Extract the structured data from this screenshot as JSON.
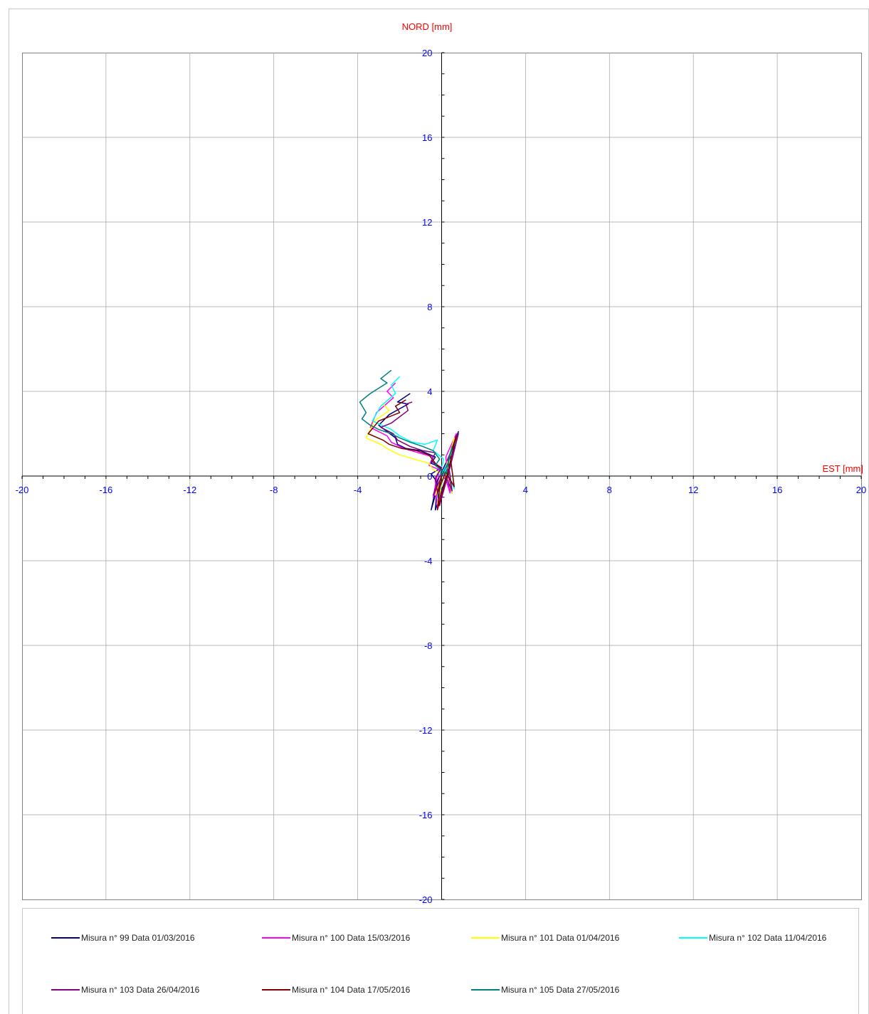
{
  "chart_data": {
    "type": "line",
    "ylabel": "NORD  [mm]",
    "xlabel": "EST [mm]",
    "xlim": [
      -20,
      20
    ],
    "ylim": [
      -20,
      20
    ],
    "x_ticks": [
      "-20",
      "-16",
      "-12",
      "-8",
      "-4",
      "0",
      "4",
      "8",
      "12",
      "16",
      "20"
    ],
    "y_ticks": [
      "20",
      "16",
      "12",
      "8",
      "4",
      "0",
      "-4",
      "-8",
      "-12",
      "-16",
      "-20"
    ],
    "x_tick_values": [
      -20,
      -16,
      -12,
      -8,
      -4,
      0,
      4,
      8,
      12,
      16,
      20
    ],
    "y_tick_values": [
      20,
      16,
      12,
      8,
      4,
      0,
      -4,
      -8,
      -12,
      -16,
      -20
    ],
    "grid": true,
    "legend_position": "bottom",
    "series": [
      {
        "name": "Misura n° 99 Data 01/03/2016",
        "color": "#000080",
        "x": [
          -1.5,
          -2.1,
          -1.6,
          -2.5,
          -3.0,
          -2.2,
          -2.1,
          -1.7,
          -1.0,
          -0.3,
          -0.5,
          0.0,
          -0.5,
          -0.2,
          -0.3,
          0.3,
          0.5,
          0.8,
          0.3,
          0.0,
          0.5,
          0.3,
          -0.3,
          -0.5,
          -0.2,
          0.0,
          -0.1
        ],
        "y": [
          3.9,
          3.5,
          3.4,
          2.9,
          2.4,
          1.8,
          1.5,
          1.3,
          1.2,
          0.9,
          0.6,
          0.4,
          0.1,
          -0.3,
          -1.6,
          0.2,
          1.0,
          2.1,
          0.8,
          0.2,
          -0.8,
          0.3,
          -0.9,
          -1.6,
          -0.2,
          0.2,
          0.0
        ]
      },
      {
        "name": "Misura n° 100 Data 15/03/2016",
        "color": "#ff00ff",
        "x": [
          -2.2,
          -2.6,
          -2.3,
          -3.1,
          -3.4,
          -2.6,
          -2.4,
          -1.8,
          -1.1,
          -0.4,
          -0.6,
          -0.1,
          -0.3,
          -0.2,
          0.4,
          0.7,
          0.2,
          0.4,
          0.1,
          -0.4,
          -0.2,
          0.0
        ],
        "y": [
          4.4,
          4.0,
          3.7,
          3.0,
          2.3,
          1.9,
          1.6,
          1.3,
          1.1,
          0.9,
          0.5,
          0.3,
          -0.2,
          -1.5,
          0.5,
          2.0,
          0.9,
          -0.8,
          0.2,
          -1.0,
          0.1,
          0.0
        ]
      },
      {
        "name": "Misura n° 101 Data 01/04/2016",
        "color": "#ffff00",
        "x": [
          -2.3,
          -2.8,
          -2.5,
          -3.2,
          -3.6,
          -2.9,
          -2.6,
          -2.0,
          -1.3,
          -0.6,
          -0.4,
          0.0,
          -0.2,
          0.2,
          0.6,
          0.3,
          0.5,
          0.2,
          -0.3,
          0.0
        ],
        "y": [
          3.8,
          3.4,
          3.1,
          2.6,
          1.8,
          1.5,
          1.3,
          1.0,
          0.8,
          0.6,
          0.3,
          0.1,
          -1.3,
          0.4,
          1.8,
          0.7,
          -0.8,
          0.1,
          -0.9,
          0.0
        ]
      },
      {
        "name": "Misura n° 102 Data 11/04/2016",
        "color": "#00ffff",
        "x": [
          -2.0,
          -2.4,
          -2.2,
          -2.9,
          -3.3,
          -2.4,
          -2.0,
          -1.4,
          -0.8,
          -0.2,
          -0.4,
          0.1,
          -0.1,
          0.3,
          0.8,
          0.4,
          0.6,
          0.2,
          -0.2,
          0.0
        ],
        "y": [
          4.7,
          4.3,
          3.9,
          3.3,
          2.6,
          2.2,
          1.9,
          1.6,
          1.5,
          1.7,
          1.2,
          0.8,
          0.0,
          0.6,
          2.0,
          1.1,
          -0.6,
          0.3,
          -1.0,
          0.0
        ]
      },
      {
        "name": "Misura n° 103 Data 26/04/2016",
        "color": "#800080",
        "x": [
          -1.4,
          -1.7,
          -1.6,
          -2.4,
          -2.9,
          -2.3,
          -2.1,
          -1.5,
          -0.9,
          -0.3,
          -0.5,
          0.0,
          -0.3,
          -0.1,
          0.4,
          0.8,
          0.3,
          0.5,
          0.1,
          -0.4,
          -0.1,
          0.0
        ],
        "y": [
          3.5,
          3.4,
          3.1,
          2.5,
          2.3,
          2.0,
          1.7,
          1.4,
          1.2,
          1.1,
          0.7,
          0.4,
          -0.1,
          -1.4,
          0.4,
          2.0,
          0.8,
          -0.7,
          0.2,
          -0.9,
          0.0,
          0.0
        ]
      },
      {
        "name": "Misura n° 104 Data 17/05/2016",
        "color": "#800000",
        "x": [
          -1.7,
          -2.2,
          -2.0,
          -3.0,
          -3.5,
          -2.8,
          -2.5,
          -1.9,
          -1.2,
          -0.6,
          -0.3,
          0.0,
          -0.2,
          0.3,
          0.7,
          0.4,
          0.6,
          0.2,
          -0.2,
          0.0
        ],
        "y": [
          3.6,
          3.3,
          3.0,
          2.6,
          2.0,
          1.7,
          1.5,
          1.3,
          1.2,
          1.0,
          0.6,
          0.3,
          -1.6,
          0.2,
          1.9,
          1.0,
          -0.5,
          0.2,
          -0.8,
          0.0
        ]
      },
      {
        "name": "Misura n° 105 Data 27/05/2016",
        "color": "#008080",
        "x": [
          -2.4,
          -2.9,
          -2.6,
          -3.4,
          -3.9,
          -3.6,
          -3.8,
          -3.4,
          -3.0,
          -2.4,
          -2.0,
          -1.5,
          -0.9,
          -0.4,
          -0.1,
          -0.3,
          0.2,
          0.5,
          0.3,
          0.0
        ],
        "y": [
          5.0,
          4.6,
          4.4,
          3.9,
          3.5,
          3.0,
          2.7,
          2.4,
          2.2,
          2.0,
          1.8,
          1.6,
          1.4,
          1.2,
          0.8,
          0.5,
          0.1,
          1.4,
          0.6,
          0.0
        ]
      }
    ]
  }
}
